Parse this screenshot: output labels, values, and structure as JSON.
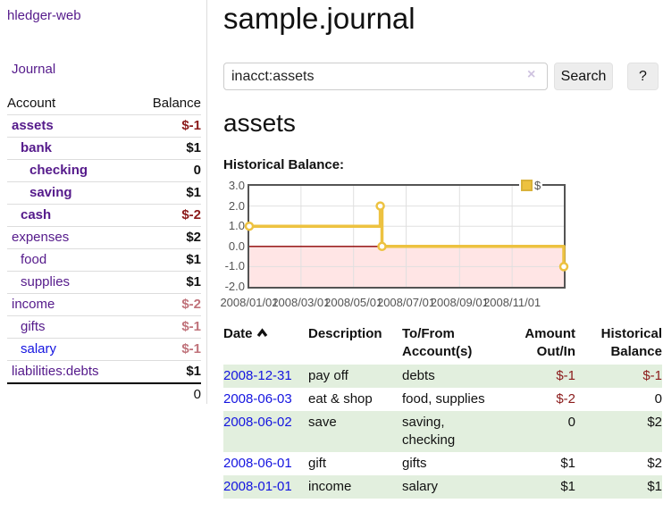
{
  "sidebar": {
    "app_title": "hledger-web",
    "nav": {
      "journal_label": "Journal"
    },
    "accounts_table": {
      "headers": {
        "account": "Account",
        "balance": "Balance"
      },
      "rows": [
        {
          "name": "assets",
          "depth": 1,
          "bold": true,
          "balance": "$-1",
          "balance_style": "neg-strong"
        },
        {
          "name": "bank",
          "depth": 2,
          "bold": true,
          "balance": "$1",
          "balance_style": "pos"
        },
        {
          "name": "checking",
          "depth": 3,
          "bold": true,
          "balance": "0",
          "balance_style": "pos"
        },
        {
          "name": "saving",
          "depth": 3,
          "bold": true,
          "balance": "$1",
          "balance_style": "pos"
        },
        {
          "name": "cash",
          "depth": 2,
          "bold": true,
          "balance": "$-2",
          "balance_style": "neg-strong"
        },
        {
          "name": "expenses",
          "depth": 1,
          "bold": false,
          "balance": "$2",
          "balance_style": "pos"
        },
        {
          "name": "food",
          "depth": 2,
          "bold": false,
          "balance": "$1",
          "balance_style": "pos"
        },
        {
          "name": "supplies",
          "depth": 2,
          "bold": false,
          "balance": "$1",
          "balance_style": "pos"
        },
        {
          "name": "income",
          "depth": 1,
          "bold": false,
          "balance": "$-2",
          "balance_style": "neg-soft"
        },
        {
          "name": "gifts",
          "depth": 2,
          "bold": false,
          "balance": "$-1",
          "balance_style": "neg-soft"
        },
        {
          "name": "salary",
          "depth": 2,
          "bold": false,
          "balance": "$-1",
          "balance_style": "neg-soft",
          "link_style": "blue"
        },
        {
          "name": "liabilities:debts",
          "depth": 1,
          "bold": false,
          "balance": "$1",
          "balance_style": "pos"
        }
      ],
      "total": "0"
    }
  },
  "main": {
    "page_title": "sample.journal",
    "search": {
      "value": "inacct:assets",
      "clear_icon": "×",
      "button_label": "Search",
      "help_label": "?"
    },
    "section_title": "assets",
    "chart_label": "Historical Balance:",
    "register_table": {
      "headers": {
        "date": "Date",
        "description": "Description",
        "tofrom": "To/From Account(s)",
        "amount": "Amount Out/In",
        "balance": "Historical Balance"
      },
      "rows": [
        {
          "date": "2008-12-31",
          "description": "pay off",
          "tofrom": "debts",
          "amount": "$-1",
          "amount_style": "neg",
          "balance": "$-1",
          "balance_style": "neg"
        },
        {
          "date": "2008-06-03",
          "description": "eat & shop",
          "tofrom": "food, supplies",
          "amount": "$-2",
          "amount_style": "neg",
          "balance": "0",
          "balance_style": "pos"
        },
        {
          "date": "2008-06-02",
          "description": "save",
          "tofrom": "saving,\nchecking",
          "amount": "0",
          "amount_style": "pos",
          "balance": "$2",
          "balance_style": "pos"
        },
        {
          "date": "2008-06-01",
          "description": "gift",
          "tofrom": "gifts",
          "amount": "$1",
          "amount_style": "pos",
          "balance": "$2",
          "balance_style": "pos"
        },
        {
          "date": "2008-01-01",
          "description": "income",
          "tofrom": "salary",
          "amount": "$1",
          "amount_style": "pos",
          "balance": "$1",
          "balance_style": "pos"
        }
      ]
    }
  },
  "chart_data": {
    "type": "line",
    "title": "Historical Balance:",
    "step": true,
    "series": [
      {
        "name": "$",
        "color": "#edc240",
        "points": [
          [
            "2008-01-01",
            1
          ],
          [
            "2008-06-01",
            2
          ],
          [
            "2008-06-03",
            0
          ],
          [
            "2008-12-31",
            -1
          ]
        ]
      }
    ],
    "x_range": [
      "2008-01-01",
      "2008-12-31"
    ],
    "y_range": [
      -2,
      3
    ],
    "y_ticks": [
      3,
      2,
      1,
      0,
      -1,
      -2
    ],
    "x_ticks": [
      {
        "date": "2008-01-01",
        "label": "2008/01/01"
      },
      {
        "date": "2008-03-01",
        "label": "2008/03/01"
      },
      {
        "date": "2008-05-01",
        "label": "2008/05/01"
      },
      {
        "date": "2008-07-01",
        "label": "2008/07/01"
      },
      {
        "date": "2008-09-01",
        "label": "2008/09/01"
      },
      {
        "date": "2008-11-01",
        "label": "2008/11/01"
      }
    ],
    "grid": true,
    "legend_position": "top-right",
    "zero_line_color": "#8b0000",
    "below_zero_fill": "rgba(255,0,0,0.10)",
    "gridline_color": "#e0e0e0",
    "plot_border_color": "#545454"
  },
  "colors": {
    "accent_purple": "#551a8b",
    "link_blue": "#1414e0",
    "negative_strong": "#8b1b1b",
    "negative_soft": "#c0737b",
    "row_stripe_green": "#e2efde",
    "series_yellow": "#edc240"
  }
}
